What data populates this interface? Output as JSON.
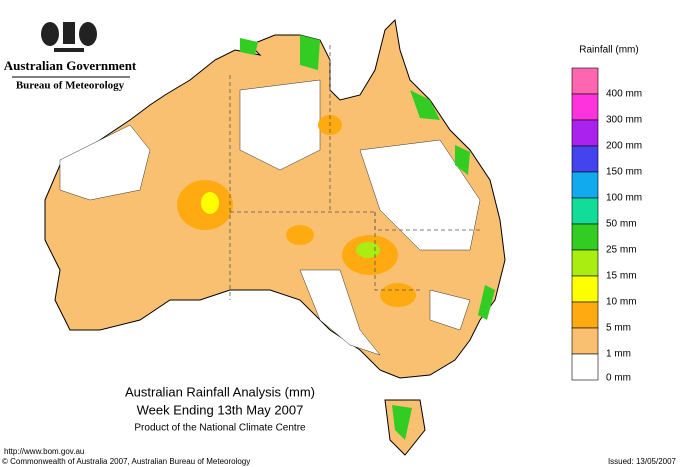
{
  "header": {
    "government": "Australian Government",
    "agency": "Bureau of Meteorology"
  },
  "legend": {
    "title": "Rainfall (mm)",
    "labels": [
      "400 mm",
      "300 mm",
      "200 mm",
      "150 mm",
      "100 mm",
      "50 mm",
      "25 mm",
      "15 mm",
      "10 mm",
      "5 mm",
      "1 mm",
      "0 mm"
    ],
    "colors": [
      "#ff66b0",
      "#ff33dd",
      "#aa22ee",
      "#4444ee",
      "#11aaee",
      "#11dd99",
      "#33cc22",
      "#aaee11",
      "#ffff00",
      "#ffaa11",
      "#f8c070",
      "#ffffff"
    ]
  },
  "title": {
    "line1": "Australian Rainfall Analysis (mm)",
    "line2": "Week Ending 13th May 2007",
    "line3": "Product of the National Climate Centre"
  },
  "footer": {
    "url": "http://www.bom.gov.au",
    "copyright": "© Commonwealth of Australia 2007, Australian Bureau of Meteorology",
    "issued": "Issued: 13/05/2007"
  }
}
